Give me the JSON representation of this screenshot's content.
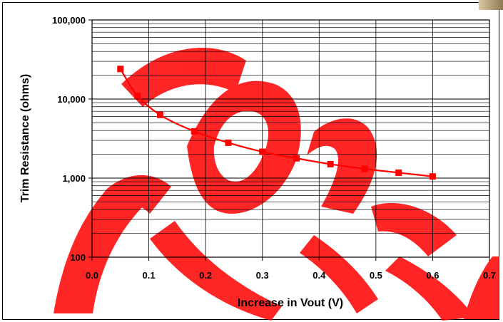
{
  "chart_data": {
    "type": "line",
    "title": "",
    "xlabel": "Increase in Vout (V)",
    "ylabel": "Trim Resistance (ohms)",
    "xlim": [
      0,
      0.7
    ],
    "ylim": [
      100,
      100000
    ],
    "yscale": "log",
    "grid": true,
    "legend": "none",
    "x_ticks": [
      "0.0",
      "0.1",
      "0.2",
      "0.3",
      "0.4",
      "0.5",
      "0.6",
      "0.7"
    ],
    "y_ticks": [
      "100",
      "1,000",
      "10,000",
      "100,000"
    ],
    "series": [
      {
        "color": "#ff0000",
        "marker": "square",
        "x": [
          0.05,
          0.08,
          0.12,
          0.18,
          0.24,
          0.3,
          0.36,
          0.42,
          0.48,
          0.54,
          0.6
        ],
        "y": [
          24000,
          11000,
          6300,
          3900,
          2800,
          2150,
          1780,
          1500,
          1310,
          1170,
          1050
        ]
      }
    ]
  },
  "colors": {
    "watermark": "#ff0000",
    "grid": "#000000"
  }
}
